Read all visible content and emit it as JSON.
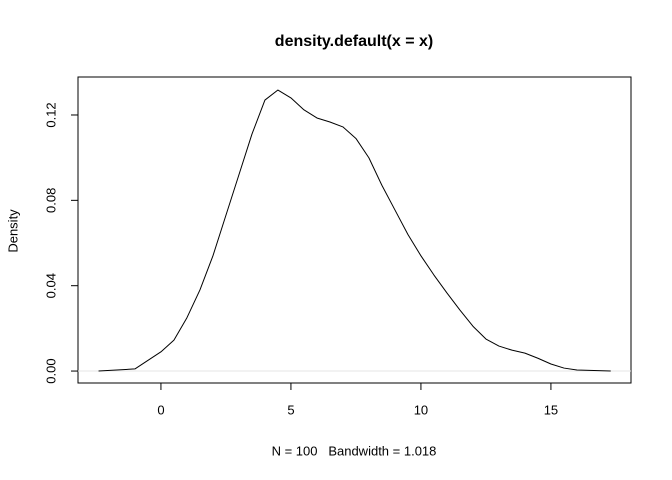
{
  "chart_data": {
    "type": "line",
    "title": "density.default(x = x)",
    "xlabel": "N = 100   Bandwidth = 1.018",
    "ylabel": "Density",
    "x": [
      -2.4,
      -1,
      0,
      0.5,
      1,
      1.5,
      2,
      2.5,
      3,
      3.5,
      4,
      4.5,
      5,
      5.5,
      6,
      6.5,
      7,
      7.5,
      8,
      8.5,
      9,
      9.5,
      10,
      10.5,
      11,
      11.5,
      12,
      12.5,
      13,
      13.5,
      14,
      14.5,
      15,
      15.5,
      16,
      17.3
    ],
    "series": [
      {
        "name": "density",
        "color": "#000000",
        "values": [
          0,
          0.001,
          0.009,
          0.0145,
          0.025,
          0.038,
          0.054,
          0.073,
          0.092,
          0.111,
          0.127,
          0.1317,
          0.128,
          0.1224,
          0.1186,
          0.1167,
          0.1144,
          0.109,
          0.0999,
          0.087,
          0.0755,
          0.064,
          0.054,
          0.045,
          0.0366,
          0.0286,
          0.021,
          0.015,
          0.0117,
          0.0098,
          0.0084,
          0.006,
          0.0033,
          0.0014,
          0.0005,
          0
        ]
      }
    ],
    "xlim": [
      -3.19,
      18.08
    ],
    "ylim": [
      -0.0056,
      0.1378
    ],
    "xticks": [
      0,
      5,
      10,
      15
    ],
    "yticks": [
      {
        "value": 0,
        "label": "0.00"
      },
      {
        "value": 0.04,
        "label": "0.04"
      },
      {
        "value": 0.08,
        "label": "0.08"
      },
      {
        "value": 0.12,
        "label": "0.12"
      }
    ],
    "hline": 0,
    "hline_color": "#e6e6e6",
    "grid": false
  }
}
